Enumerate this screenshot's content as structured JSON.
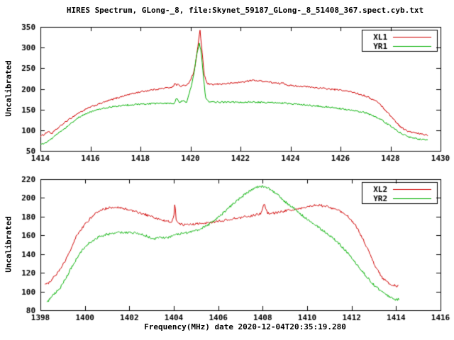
{
  "chart_data": [
    {
      "type": "line",
      "title": "HIRES Spectrum, GLong-_8, file:Skynet_59187_GLong-_8_51408_367.spect.cyb.txt",
      "ylabel": "Uncalibrated",
      "xlabel": "",
      "xlim": [
        1414,
        1430
      ],
      "ylim": [
        50,
        350
      ],
      "xticks": [
        1414,
        1416,
        1418,
        1420,
        1422,
        1424,
        1426,
        1428,
        1430
      ],
      "yticks": [
        50,
        100,
        150,
        200,
        250,
        300,
        350
      ],
      "legend_position": "top-right",
      "grid": false,
      "noise": 2.0,
      "series": [
        {
          "name": "XL1",
          "color": "#d00000",
          "x": [
            1414.0,
            1414.15,
            1414.3,
            1414.45,
            1414.6,
            1415.0,
            1415.5,
            1416.0,
            1416.5,
            1417.0,
            1417.5,
            1418.0,
            1418.5,
            1419.0,
            1419.3,
            1419.4,
            1419.45,
            1419.5,
            1419.6,
            1419.75,
            1419.9,
            1420.0,
            1420.1,
            1420.2,
            1420.3,
            1420.38,
            1420.45,
            1420.55,
            1420.65,
            1420.8,
            1421.0,
            1421.5,
            1422.0,
            1422.5,
            1423.0,
            1423.4,
            1423.6,
            1423.7,
            1423.8,
            1424.0,
            1424.5,
            1425.0,
            1425.5,
            1426.0,
            1426.5,
            1427.0,
            1427.5,
            1428.0,
            1428.4,
            1428.7,
            1429.0,
            1429.5
          ],
          "y": [
            85,
            90,
            97,
            92,
            100,
            120,
            141,
            156,
            167,
            177,
            186,
            193,
            198,
            202,
            205,
            215,
            207,
            212,
            206,
            208,
            212,
            222,
            235,
            260,
            305,
            342,
            300,
            235,
            214,
            210,
            211,
            213,
            216,
            221,
            218,
            214,
            212,
            216,
            211,
            208,
            206,
            203,
            200,
            197,
            192,
            183,
            168,
            135,
            108,
            97,
            93,
            88
          ]
        },
        {
          "name": "YR1",
          "color": "#00b000",
          "x": [
            1414.0,
            1414.2,
            1414.35,
            1414.5,
            1415.0,
            1415.5,
            1416.0,
            1416.5,
            1417.0,
            1417.5,
            1418.0,
            1418.5,
            1419.0,
            1419.35,
            1419.45,
            1419.55,
            1419.7,
            1419.85,
            1419.95,
            1420.05,
            1420.15,
            1420.25,
            1420.35,
            1420.42,
            1420.5,
            1420.6,
            1420.75,
            1421.0,
            1421.5,
            1422.0,
            1422.5,
            1423.0,
            1423.5,
            1424.0,
            1424.5,
            1425.0,
            1425.5,
            1426.0,
            1426.5,
            1427.0,
            1427.5,
            1428.0,
            1428.4,
            1428.8,
            1429.2,
            1429.5
          ],
          "y": [
            65,
            70,
            75,
            82,
            106,
            130,
            145,
            153,
            158,
            161,
            163,
            164,
            165,
            165,
            178,
            168,
            172,
            166,
            190,
            210,
            240,
            285,
            310,
            295,
            240,
            180,
            168,
            168,
            168,
            168,
            168,
            167,
            166,
            164,
            162,
            159,
            156,
            152,
            148,
            142,
            130,
            110,
            93,
            82,
            78,
            76
          ]
        }
      ]
    },
    {
      "type": "line",
      "title": "",
      "ylabel": "Uncalibrated",
      "xlabel": "Frequency(MHz) date 2020-12-04T20:35:19.280",
      "xlim": [
        1398,
        1416
      ],
      "ylim": [
        80,
        220
      ],
      "xticks": [
        1398,
        1400,
        1402,
        1404,
        1406,
        1408,
        1410,
        1412,
        1414,
        1416
      ],
      "yticks": [
        80,
        100,
        120,
        140,
        160,
        180,
        200,
        220
      ],
      "legend_position": "top-right",
      "grid": false,
      "noise": 1.3,
      "series": [
        {
          "name": "XL2",
          "color": "#d00000",
          "x": [
            1398.2,
            1398.4,
            1398.7,
            1399.0,
            1399.3,
            1399.6,
            1400.0,
            1400.4,
            1400.8,
            1401.2,
            1401.5,
            1402.0,
            1402.5,
            1403.0,
            1403.5,
            1403.9,
            1404.0,
            1404.05,
            1404.1,
            1404.3,
            1404.5,
            1404.7,
            1405.0,
            1405.5,
            1406.0,
            1406.5,
            1407.0,
            1407.5,
            1407.9,
            1408.0,
            1408.05,
            1408.2,
            1408.5,
            1409.0,
            1409.5,
            1410.0,
            1410.3,
            1410.6,
            1411.0,
            1411.4,
            1411.8,
            1412.2,
            1412.6,
            1413.0,
            1413.4,
            1413.7,
            1414.0,
            1414.1
          ],
          "y": [
            107,
            110,
            118,
            128,
            142,
            158,
            172,
            182,
            188,
            190,
            190,
            187,
            184,
            180,
            176,
            174,
            180,
            196,
            176,
            172,
            171,
            172,
            172,
            173,
            175,
            177,
            179,
            181,
            183,
            190,
            195,
            184,
            184,
            186,
            188,
            190,
            192,
            192,
            190,
            187,
            181,
            170,
            152,
            130,
            114,
            108,
            106,
            106
          ]
        },
        {
          "name": "YR2",
          "color": "#00b000",
          "x": [
            1398.3,
            1398.5,
            1398.7,
            1398.9,
            1399.2,
            1399.5,
            1399.8,
            1400.2,
            1400.6,
            1401.0,
            1401.5,
            1402.0,
            1402.4,
            1402.8,
            1403.1,
            1403.4,
            1403.7,
            1404.0,
            1404.4,
            1404.8,
            1405.2,
            1405.6,
            1406.0,
            1406.4,
            1406.8,
            1407.2,
            1407.5,
            1407.8,
            1408.0,
            1408.3,
            1408.6,
            1409.0,
            1409.4,
            1409.8,
            1410.2,
            1410.6,
            1411.0,
            1411.4,
            1411.8,
            1412.2,
            1412.6,
            1413.0,
            1413.4,
            1413.7,
            1414.0,
            1414.15
          ],
          "y": [
            88,
            95,
            99,
            104,
            117,
            130,
            142,
            152,
            158,
            161,
            163,
            163,
            162,
            159,
            156,
            158,
            157,
            160,
            162,
            164,
            167,
            172,
            179,
            188,
            196,
            204,
            209,
            212,
            212,
            210,
            205,
            196,
            189,
            181,
            174,
            167,
            160,
            152,
            142,
            130,
            118,
            107,
            99,
            94,
            91,
            92
          ]
        }
      ]
    }
  ]
}
